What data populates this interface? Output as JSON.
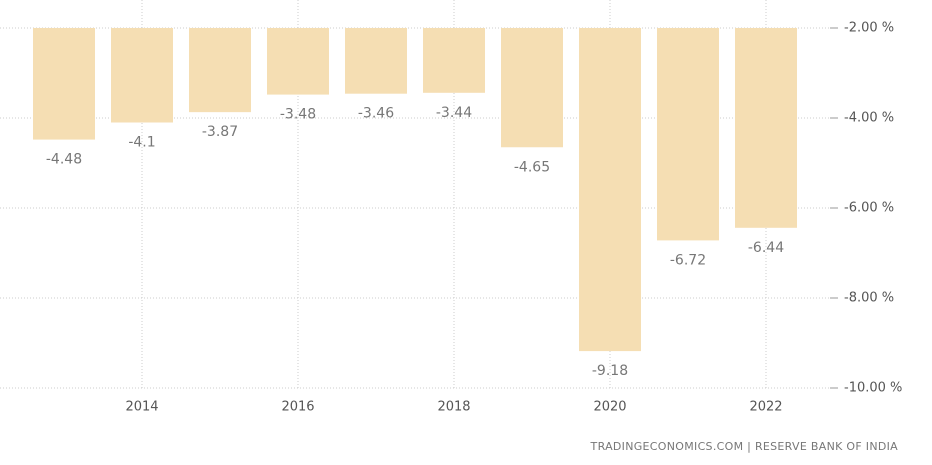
{
  "chart_data": {
    "type": "bar",
    "categories": [
      null,
      "2014",
      null,
      "2016",
      null,
      "2018",
      null,
      "2020",
      null,
      "2022"
    ],
    "values": [
      -4.48,
      -4.1,
      -3.87,
      -3.48,
      -3.46,
      -3.44,
      -4.65,
      -9.18,
      -6.72,
      -6.44
    ],
    "color": "#f5deb3",
    "ylim": [
      -10,
      -2
    ],
    "yticks": [
      {
        "value": -2,
        "label": "-2.00 %"
      },
      {
        "value": -4,
        "label": "-4.00 %"
      },
      {
        "value": -6,
        "label": "-6.00 %"
      },
      {
        "value": -8,
        "label": "-8.00 %"
      },
      {
        "value": -10,
        "label": "-10.00 %"
      }
    ],
    "grid": true,
    "source": "TRADINGECONOMICS.COM | RESERVE BANK OF INDIA"
  }
}
